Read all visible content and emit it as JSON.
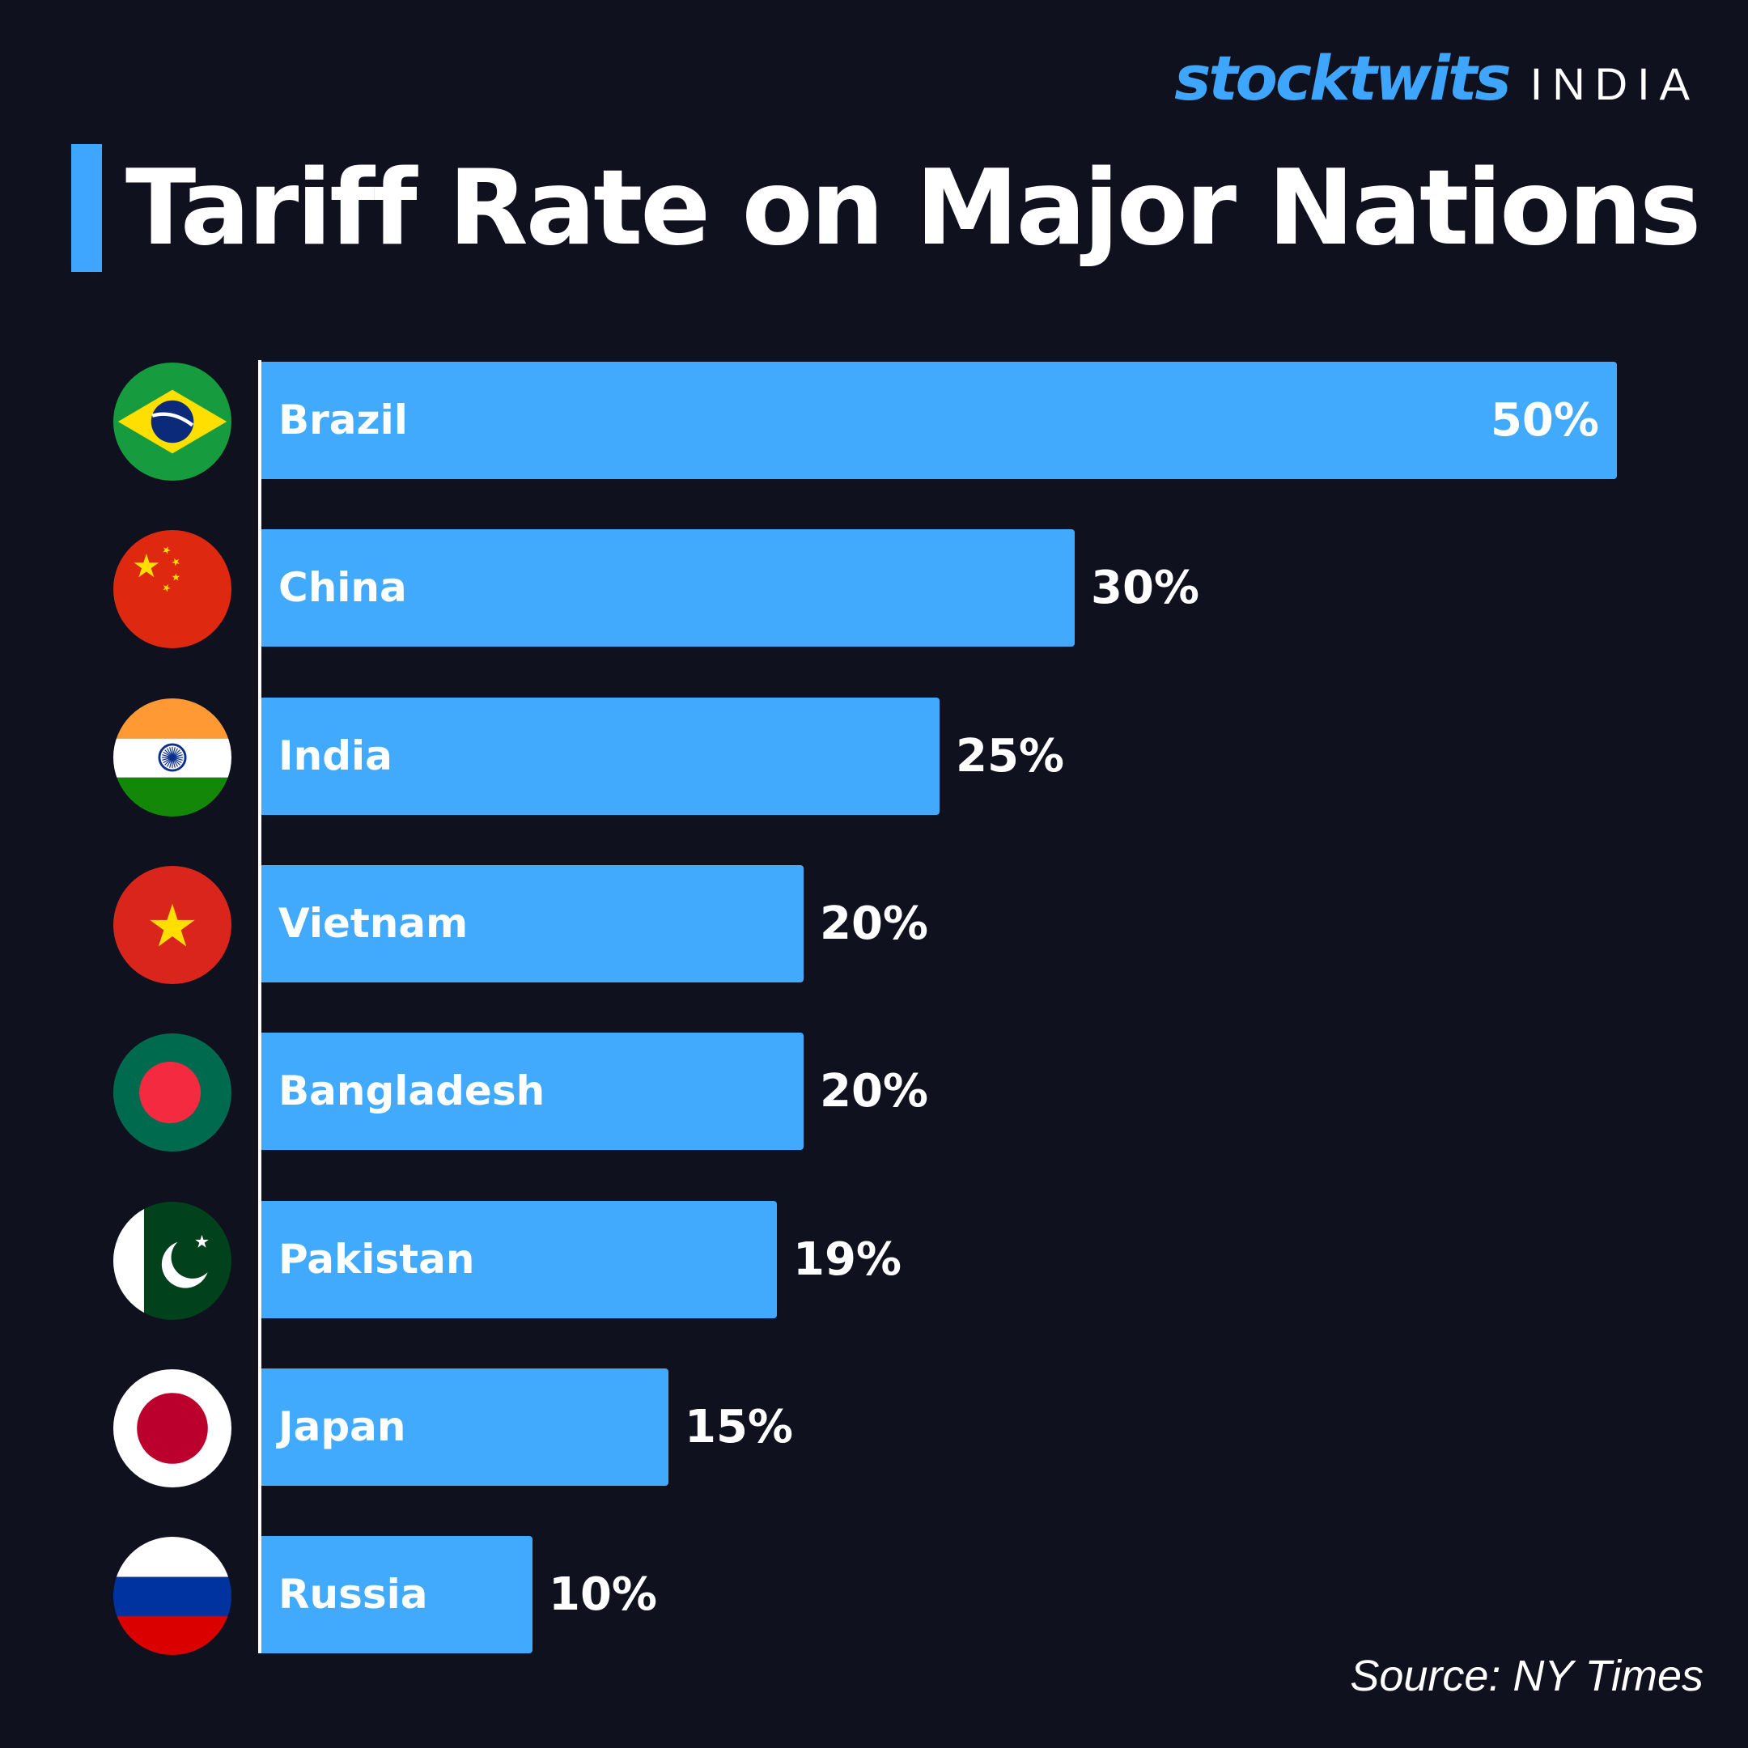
{
  "brand": {
    "logo": "stocktwits",
    "region": "INDIA"
  },
  "title": "Tariff Rate on Major Nations",
  "source": "Source: NY Times",
  "colors": {
    "background": "#0f121e",
    "bar": "#42aafd",
    "accent": "#3ea6ff",
    "text": "#ffffff"
  },
  "chart_data": {
    "type": "bar",
    "orientation": "horizontal",
    "title": "Tariff Rate on Major Nations",
    "categories": [
      "Brazil",
      "China",
      "India",
      "Vietnam",
      "Bangladesh",
      "Pakistan",
      "Japan",
      "Russia"
    ],
    "values": [
      50,
      30,
      25,
      20,
      20,
      19,
      15,
      10
    ],
    "value_labels": [
      "50%",
      "30%",
      "25%",
      "20%",
      "20%",
      "19%",
      "15%",
      "10%"
    ],
    "flags": [
      "brazil-flag-icon",
      "china-flag-icon",
      "india-flag-icon",
      "vietnam-flag-icon",
      "bangladesh-flag-icon",
      "pakistan-flag-icon",
      "japan-flag-icon",
      "russia-flag-icon"
    ],
    "xlim": [
      0,
      50
    ],
    "grid": false,
    "legend": "none"
  }
}
